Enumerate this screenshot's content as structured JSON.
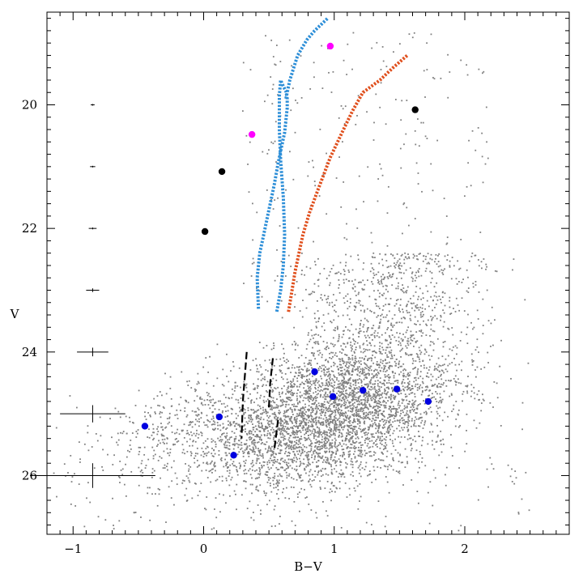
{
  "chart_data": {
    "type": "scatter",
    "xlabel": "B−V",
    "ylabel": "V",
    "xlim": [
      -1.2,
      2.8
    ],
    "ylim": [
      26.95,
      18.5
    ],
    "y_inverted": true,
    "x_ticks": [
      -1,
      0,
      1,
      2
    ],
    "x_tick_labels": [
      "−1",
      "0",
      "1",
      "2"
    ],
    "y_ticks": [
      20,
      22,
      24,
      26
    ],
    "y_tick_labels": [
      "20",
      "22",
      "24",
      "26"
    ],
    "grid": false,
    "legend": "none",
    "colors": {
      "field_stars": "#808080",
      "blue_track": "#2e8fd8",
      "orange_track": "#e0501e",
      "blue_points": "#0000e0",
      "black_points": "#000000",
      "magenta_points": "#ff00ff",
      "dashed_lines": "#000000",
      "error_bars": "#000000"
    },
    "field_stars": {
      "description_count": 5200,
      "core": {
        "b_minus_v": 0.95,
        "v": 25.0
      },
      "extent": {
        "b_minus_v": [
          -1.1,
          2.5
        ],
        "v": [
          18.8,
          26.8
        ]
      }
    },
    "series": [
      {
        "style": "dotted",
        "color": "#2e8fd8",
        "x": [
          0.42,
          0.41,
          0.43,
          0.46,
          0.5,
          0.54,
          0.57,
          0.6,
          0.62,
          0.63,
          0.64,
          0.64,
          0.63,
          0.61,
          0.59,
          0.58,
          0.58,
          0.59,
          0.61,
          0.62,
          0.61,
          0.59,
          0.56
        ],
        "y": [
          23.3,
          22.8,
          22.4,
          22.1,
          21.7,
          21.3,
          20.95,
          20.65,
          20.45,
          20.25,
          20.05,
          19.9,
          19.78,
          19.7,
          19.6,
          19.85,
          20.4,
          20.9,
          21.5,
          22.1,
          22.6,
          23.0,
          23.35
        ],
        "x_upper": [
          0.63,
          0.66,
          0.72,
          0.79,
          0.85,
          0.9,
          0.95
        ],
        "y_upper": [
          19.9,
          19.6,
          19.2,
          18.95,
          18.8,
          18.7,
          18.6
        ]
      },
      {
        "style": "dotted",
        "color": "#e0501e",
        "x": [
          0.65,
          0.7,
          0.76,
          0.81,
          0.88,
          0.97,
          1.06,
          1.14,
          1.22,
          1.35,
          1.45,
          1.56
        ],
        "y": [
          23.35,
          22.7,
          22.1,
          21.75,
          21.35,
          20.85,
          20.45,
          20.1,
          19.8,
          19.6,
          19.4,
          19.2
        ]
      }
    ],
    "blue_points": [
      {
        "x": -0.45,
        "y": 25.2
      },
      {
        "x": 0.12,
        "y": 25.05
      },
      {
        "x": 0.23,
        "y": 25.67
      },
      {
        "x": 0.85,
        "y": 24.32
      },
      {
        "x": 0.99,
        "y": 24.72
      },
      {
        "x": 1.22,
        "y": 24.62
      },
      {
        "x": 1.48,
        "y": 24.6
      },
      {
        "x": 1.72,
        "y": 24.8
      }
    ],
    "black_points": [
      {
        "x": 0.01,
        "y": 22.05
      },
      {
        "x": 0.14,
        "y": 21.08
      },
      {
        "x": 1.62,
        "y": 20.08
      }
    ],
    "magenta_points": [
      {
        "x": 0.37,
        "y": 20.48
      },
      {
        "x": 0.97,
        "y": 19.05
      }
    ],
    "dashed_lines": [
      {
        "x": [
          0.33,
          0.3,
          0.29
        ],
        "y": [
          24.0,
          24.8,
          25.4
        ]
      },
      {
        "x": [
          0.53,
          0.51,
          0.5
        ],
        "y": [
          24.1,
          24.5,
          24.9
        ]
      },
      {
        "x": [
          0.57,
          0.54
        ],
        "y": [
          25.1,
          25.6
        ]
      }
    ],
    "error_bars": [
      {
        "x": -0.85,
        "y": 20.0,
        "xerr": 0.015,
        "yerr": 0.005
      },
      {
        "x": -0.85,
        "y": 21.0,
        "xerr": 0.02,
        "yerr": 0.01
      },
      {
        "x": -0.85,
        "y": 22.0,
        "xerr": 0.03,
        "yerr": 0.015
      },
      {
        "x": -0.85,
        "y": 23.0,
        "xerr": 0.05,
        "yerr": 0.03
      },
      {
        "x": -0.85,
        "y": 24.0,
        "xerr": 0.12,
        "yerr": 0.07
      },
      {
        "x": -0.85,
        "y": 25.0,
        "xerr": 0.25,
        "yerr": 0.14
      },
      {
        "x": -0.85,
        "y": 26.0,
        "xerr": 0.48,
        "yerr": 0.2
      }
    ]
  }
}
